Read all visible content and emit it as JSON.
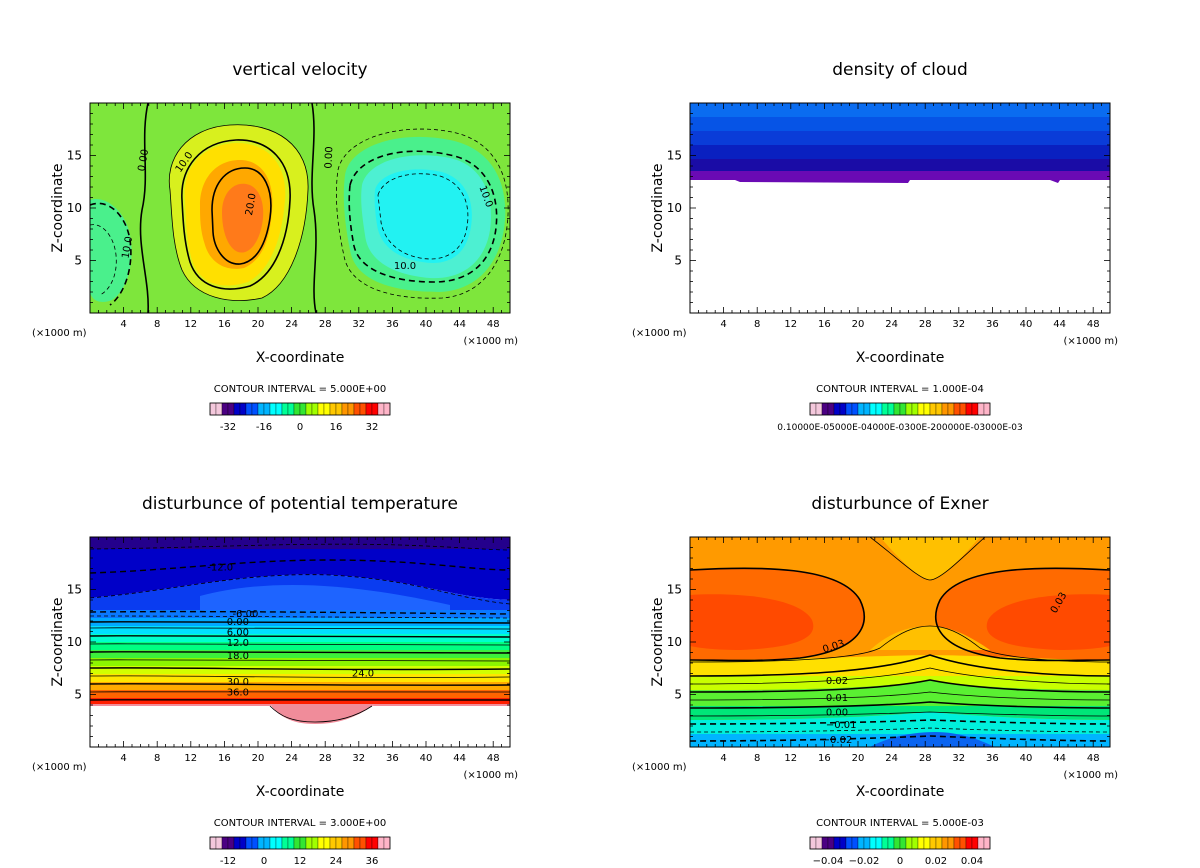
{
  "figure": {
    "background": "#ffffff",
    "colormap": [
      "#f4c8dc",
      "#4b0082",
      "#0000c8",
      "#0050ff",
      "#00b4ff",
      "#00ffff",
      "#00ff96",
      "#32e632",
      "#a0ff00",
      "#ffff00",
      "#ffc800",
      "#ff9600",
      "#ff5000",
      "#ff0000",
      "#ffb4c8"
    ]
  },
  "chart_data": [
    {
      "id": "w",
      "type": "contour",
      "title": "vertical velocity",
      "xlabel": "X-coordinate",
      "ylabel": "Z-coordinate",
      "x_unit_left": "(×1000 m)",
      "x_unit_right": "(×1000 m)",
      "xlim": [
        0,
        50
      ],
      "ylim": [
        0,
        20
      ],
      "xticks": [
        4,
        8,
        12,
        16,
        20,
        24,
        28,
        32,
        36,
        40,
        44,
        48
      ],
      "yticks": [
        5,
        10,
        15
      ],
      "contour_interval": "CONTOUR INTERVAL = 5.000E+00",
      "colorbar_ticks": [
        "-32",
        "-16",
        "0",
        "16",
        "32"
      ],
      "colorbar_range": [
        -40,
        40
      ],
      "contour_labels": [
        {
          "text": "0.00",
          "x": 6.7,
          "y": 14.5,
          "rot": -80
        },
        {
          "text": "10.0",
          "x": 11.5,
          "y": 14.2,
          "rot": -55
        },
        {
          "text": "20.0",
          "x": 19.5,
          "y": 10.3,
          "rot": -80
        },
        {
          "text": "0.00",
          "x": 28.8,
          "y": 14.8,
          "rot": -88
        },
        {
          "text": "10.0",
          "x": 37.5,
          "y": 4.2,
          "rot": 0
        },
        {
          "text": "10.0",
          "x": 46.8,
          "y": 11.0,
          "rot": 70
        },
        {
          "text": "10.0",
          "x": 4.8,
          "y": 6.2,
          "rot": -80
        }
      ]
    },
    {
      "id": "qc",
      "type": "contour",
      "title": "density of cloud",
      "xlabel": "X-coordinate",
      "ylabel": "Z-coordinate",
      "x_unit_left": "(×1000 m)",
      "x_unit_right": "(×1000 m)",
      "xlim": [
        0,
        50
      ],
      "ylim": [
        0,
        20
      ],
      "xticks": [
        4,
        8,
        12,
        16,
        20,
        24,
        28,
        32,
        36,
        40,
        44,
        48
      ],
      "yticks": [
        5,
        10,
        15
      ],
      "contour_interval": "CONTOUR INTERVAL = 1.000E-04",
      "colorbar_ticks_text": "0.10000E-05000E-04000E-0300E-200000E-03000E-03",
      "colorbar_range": [
        0,
        0.0013
      ],
      "contour_labels": []
    },
    {
      "id": "theta",
      "type": "contour",
      "title": "disturbunce of potential temperature",
      "xlabel": "X-coordinate",
      "ylabel": "Z-coordinate",
      "x_unit_left": "(×1000 m)",
      "x_unit_right": "(×1000 m)",
      "xlim": [
        0,
        50
      ],
      "ylim": [
        0,
        20
      ],
      "xticks": [
        4,
        8,
        12,
        16,
        20,
        24,
        28,
        32,
        36,
        40,
        44,
        48
      ],
      "yticks": [
        5,
        10,
        15
      ],
      "contour_interval": "CONTOUR INTERVAL = 3.000E+00",
      "colorbar_ticks": [
        "-12",
        "0",
        "12",
        "24",
        "36"
      ],
      "colorbar_range": [
        -18,
        42
      ],
      "contour_labels": [
        {
          "text": "-12.0",
          "x": 15.5,
          "y": 16.8,
          "rot": 0
        },
        {
          "text": "-6.00",
          "x": 18.5,
          "y": 12.4,
          "rot": 0
        },
        {
          "text": "0.00",
          "x": 17.6,
          "y": 11.6,
          "rot": 0
        },
        {
          "text": "6.00",
          "x": 17.6,
          "y": 10.6,
          "rot": 0
        },
        {
          "text": "12.0",
          "x": 17.6,
          "y": 9.6,
          "rot": 0
        },
        {
          "text": "18.0",
          "x": 17.6,
          "y": 8.4,
          "rot": 0
        },
        {
          "text": "24.0",
          "x": 32.5,
          "y": 6.7,
          "rot": 0
        },
        {
          "text": "30.0",
          "x": 17.6,
          "y": 5.9,
          "rot": 0
        },
        {
          "text": "36.0",
          "x": 17.6,
          "y": 4.9,
          "rot": 0
        }
      ]
    },
    {
      "id": "exner",
      "type": "contour",
      "title": "disturbunce of Exner",
      "xlabel": "X-coordinate",
      "ylabel": "Z-coordinate",
      "x_unit_left": "(×1000 m)",
      "x_unit_right": "(×1000 m)",
      "xlim": [
        0,
        50
      ],
      "ylim": [
        0,
        20
      ],
      "xticks": [
        4,
        8,
        12,
        16,
        20,
        24,
        28,
        32,
        36,
        40,
        44,
        48
      ],
      "yticks": [
        5,
        10,
        15
      ],
      "contour_interval": "CONTOUR INTERVAL = 5.000E-03",
      "colorbar_ticks": [
        "−0.04",
        "−0.02",
        "0",
        "0.02",
        "0.04"
      ],
      "colorbar_range": [
        -0.05,
        0.05
      ],
      "contour_labels": [
        {
          "text": "0.03",
          "x": 44.2,
          "y": 13.6,
          "rot": -60
        },
        {
          "text": "0.03",
          "x": 17.2,
          "y": 9.3,
          "rot": -18
        },
        {
          "text": "0.02",
          "x": 17.5,
          "y": 6.0,
          "rot": 0
        },
        {
          "text": "0.01",
          "x": 17.5,
          "y": 4.4,
          "rot": 0
        },
        {
          "text": "0.00",
          "x": 17.5,
          "y": 3.0,
          "rot": 0
        },
        {
          "text": "−0.01",
          "x": 18.0,
          "y": 1.8,
          "rot": 0
        },
        {
          "text": "−0.02",
          "x": 17.5,
          "y": 0.4,
          "rot": 0
        }
      ]
    }
  ]
}
